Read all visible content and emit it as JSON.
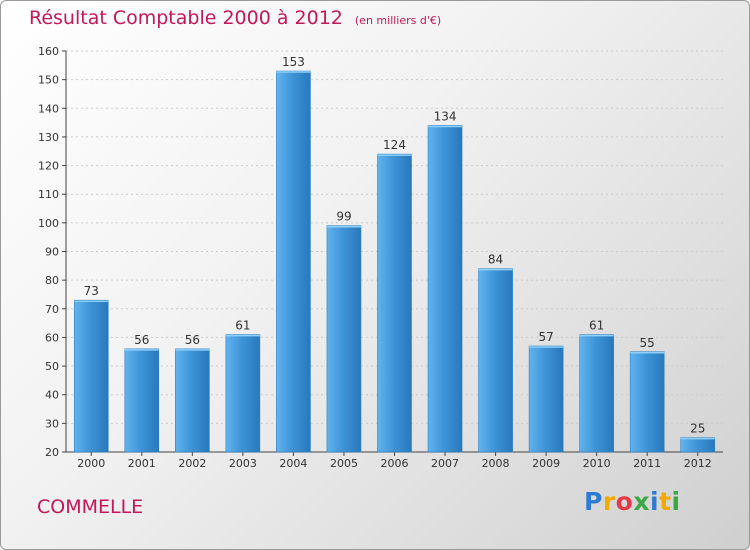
{
  "title": "Résultat Comptable 2000 à 2012",
  "unit_note": "(en milliers d'€)",
  "location": "COMMELLE",
  "brand": {
    "letters": [
      "P",
      "r",
      "o",
      "x",
      "i",
      "t",
      "i"
    ],
    "colors": [
      "#2e7bd6",
      "#f2a900",
      "#e63946",
      "#3aa845",
      "#2e7bd6",
      "#f2a900",
      "#3aa845"
    ]
  },
  "colors": {
    "bar": "#3f95d9",
    "bar_light": "#62b3ee",
    "bar_dark": "#2878bc",
    "axis": "#444444",
    "grid": "#cccccc"
  },
  "chart_data": {
    "type": "bar",
    "title": "Résultat Comptable 2000 à 2012",
    "xlabel": "",
    "ylabel": "",
    "ylim": [
      20,
      160
    ],
    "ytick_step": 10,
    "categories": [
      "2000",
      "2001",
      "2002",
      "2003",
      "2004",
      "2005",
      "2006",
      "2007",
      "2008",
      "2009",
      "2010",
      "2011",
      "2012"
    ],
    "values": [
      73,
      56,
      56,
      61,
      153,
      99,
      124,
      134,
      84,
      57,
      61,
      55,
      25
    ]
  }
}
